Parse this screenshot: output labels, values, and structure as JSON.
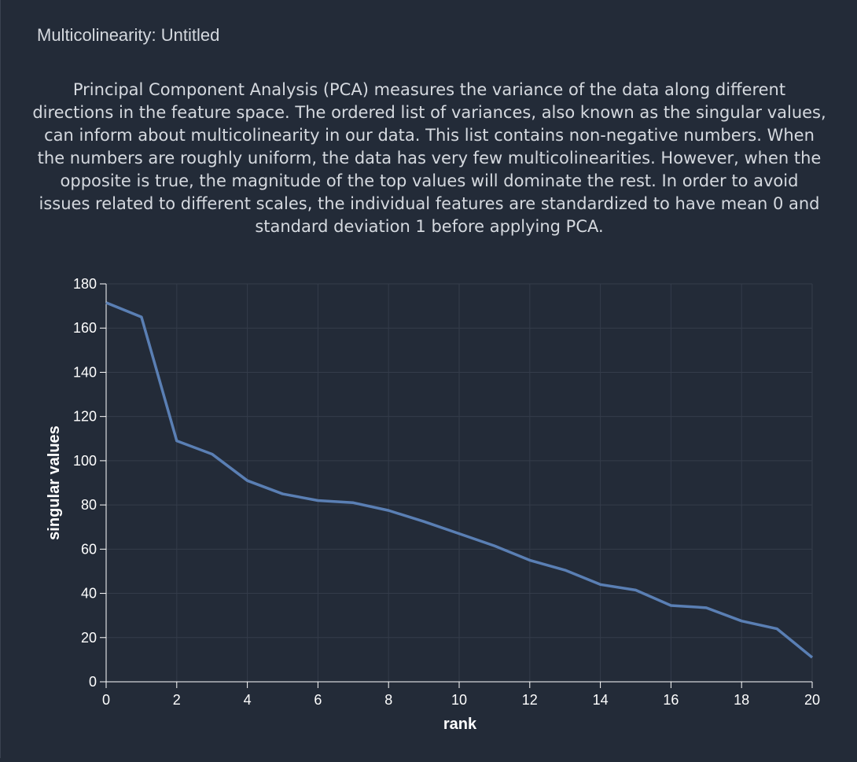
{
  "panel": {
    "title": "Multicolinearity: Untitled",
    "description": "Principal Component Analysis (PCA) measures the variance of the data along different directions in the feature space. The ordered list of variances, also known as the singular values, can inform about multicolinearity in our data. This list contains non-negative numbers. When the numbers are roughly uniform, the data has very few multicolinearities. However, when the opposite is true, the magnitude of the top values will dominate the rest. In order to avoid issues related to different scales, the individual features are standardized to have mean 0 and standard deviation 1 before applying PCA."
  },
  "chart_data": {
    "type": "line",
    "xlabel": "rank",
    "ylabel": "singular values",
    "xlim": [
      0,
      20
    ],
    "ylim": [
      0,
      180
    ],
    "x_ticks": [
      0,
      2,
      4,
      6,
      8,
      10,
      12,
      14,
      16,
      18,
      20
    ],
    "y_ticks": [
      0,
      20,
      40,
      60,
      80,
      100,
      120,
      140,
      160,
      180
    ],
    "grid": true,
    "x": [
      0,
      1,
      2,
      3,
      4,
      5,
      6,
      7,
      8,
      9,
      10,
      11,
      12,
      13,
      14,
      15,
      16,
      17,
      18,
      19,
      20
    ],
    "values": [
      171.5,
      165,
      109,
      103,
      91,
      85,
      82,
      81,
      77.5,
      72.5,
      67,
      61.5,
      55,
      50.5,
      44,
      41.5,
      34.5,
      33.5,
      27.5,
      24,
      11
    ],
    "line_color": "#5a7fb4"
  }
}
